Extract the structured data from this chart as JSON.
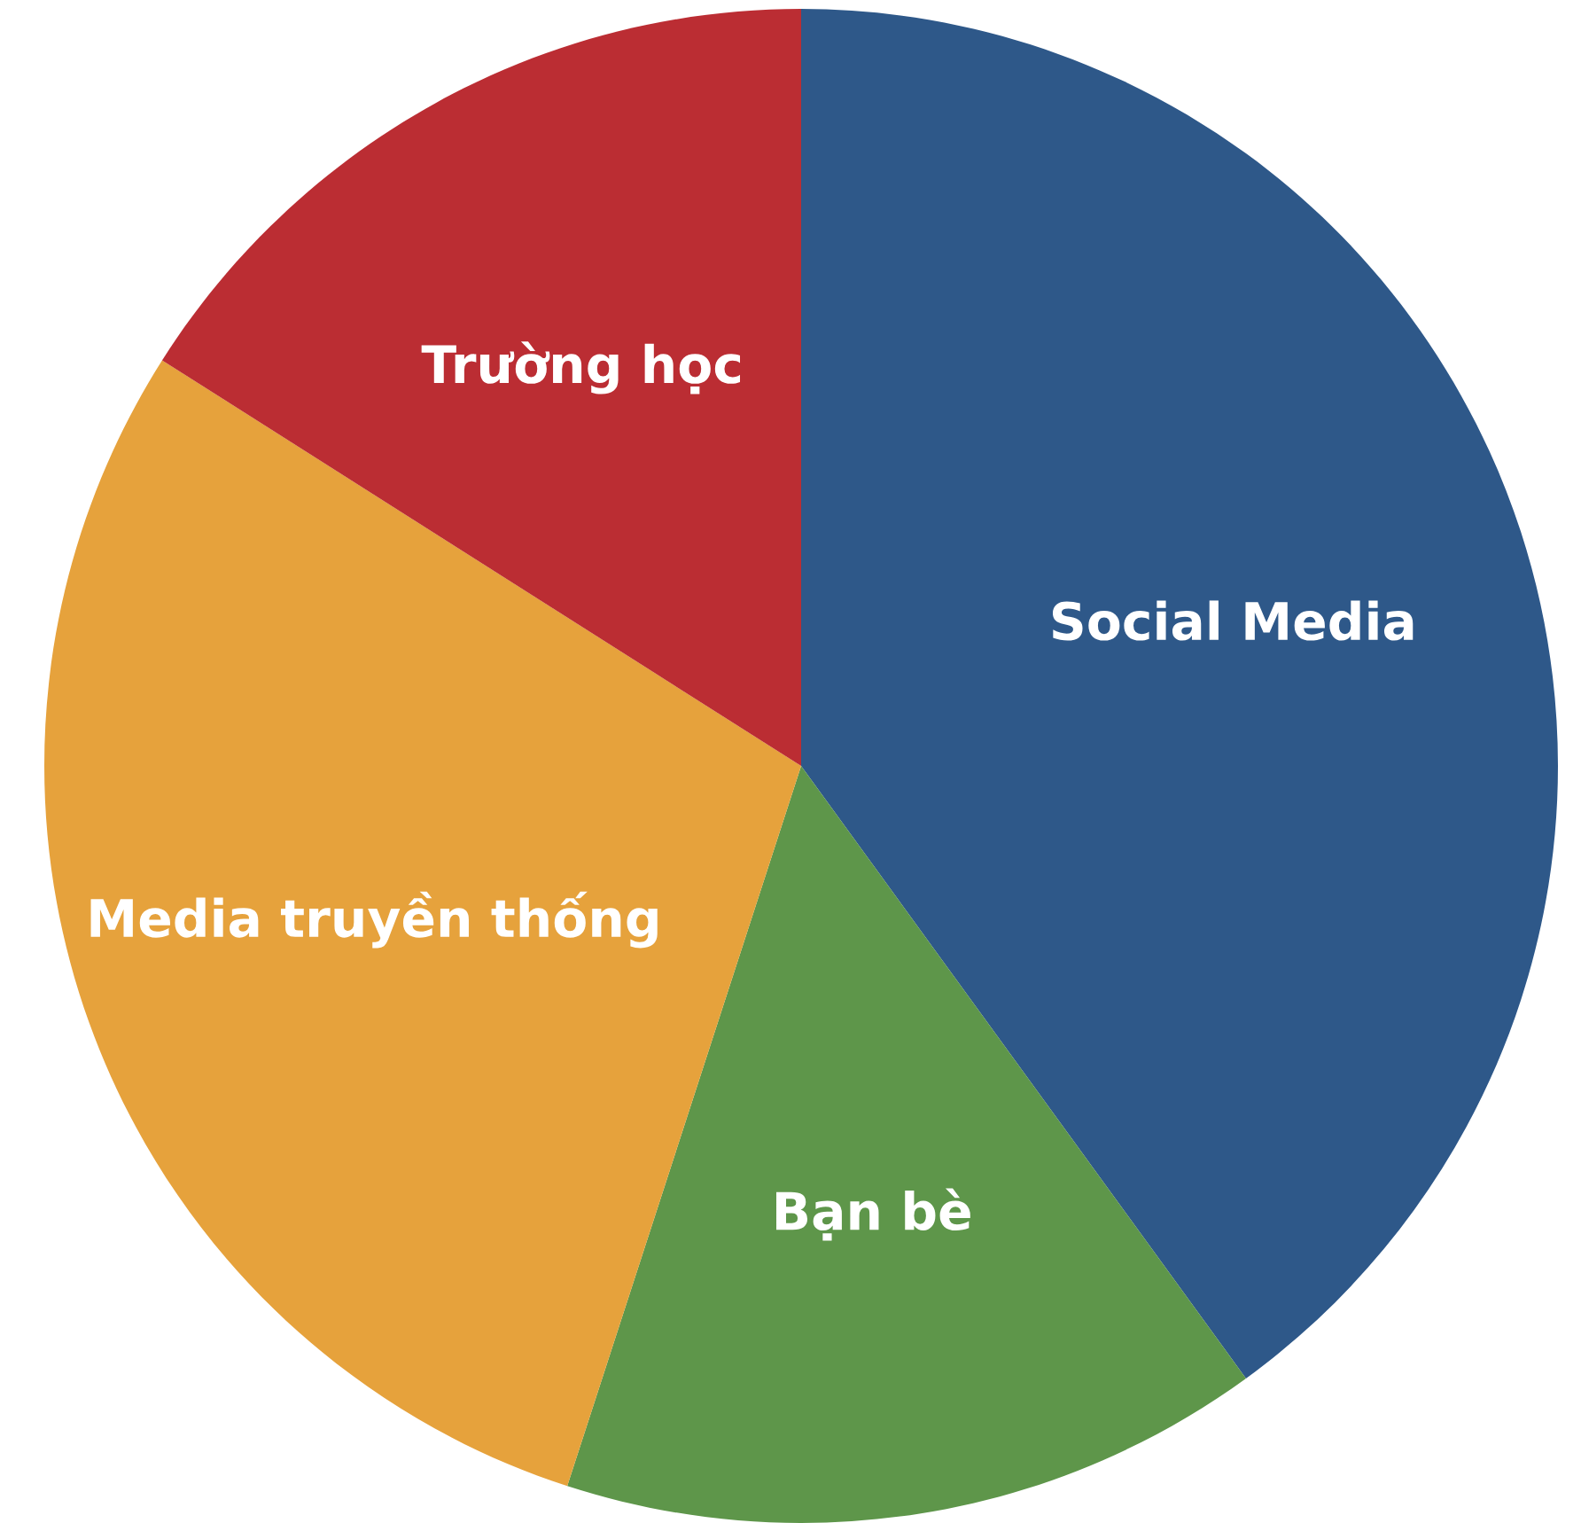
{
  "chart_data": {
    "type": "pie",
    "categories": [
      "Social Media",
      "Bạn bè",
      "Media truyền thống",
      "Trường học"
    ],
    "values": [
      40,
      15,
      29,
      16
    ],
    "colors": [
      "#2e5889",
      "#5e964a",
      "#e6a23c",
      "#bb2d33"
    ]
  }
}
